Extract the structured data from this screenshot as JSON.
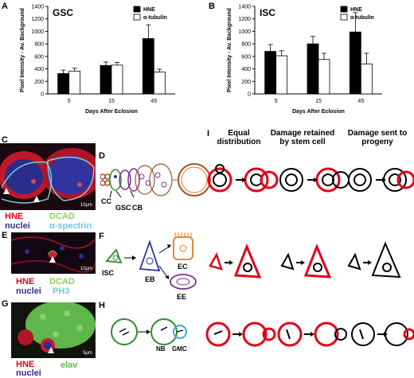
{
  "panels": {
    "A": "A",
    "B": "B",
    "C": "C",
    "D": "D",
    "E": "E",
    "F": "F",
    "G": "G",
    "H": "H",
    "I": "I"
  },
  "chart_data": [
    {
      "type": "bar",
      "panel": "A",
      "title": "GSC",
      "categories": [
        "5",
        "15",
        "45"
      ],
      "series": [
        {
          "name": "HNE",
          "values": [
            325,
            455,
            885
          ],
          "errors": [
            55,
            55,
            220
          ],
          "color": "#000000"
        },
        {
          "name": "α-tubulin",
          "values": [
            365,
            460,
            350
          ],
          "errors": [
            45,
            45,
            45
          ],
          "color": "#ffffff"
        }
      ],
      "xlabel": "Days After Eclosion",
      "ylabel": "Pixel Intensity - Av. Background",
      "ylim": [
        0,
        1400
      ],
      "yticks": [
        0,
        200,
        400,
        600,
        800,
        1000,
        1200,
        1400
      ],
      "legend": "top-right",
      "grid": false
    },
    {
      "type": "bar",
      "panel": "B",
      "title": "ISC",
      "categories": [
        "5",
        "15",
        "45"
      ],
      "series": [
        {
          "name": "HNE",
          "values": [
            680,
            800,
            990
          ],
          "errors": [
            110,
            120,
            310
          ],
          "color": "#000000"
        },
        {
          "name": "α-tubulin",
          "values": [
            610,
            550,
            480
          ],
          "errors": [
            80,
            100,
            170
          ],
          "color": "#ffffff"
        }
      ],
      "xlabel": "Days After Eclosion",
      "ylabel": "Pixel Intensity - Av. Background",
      "ylim": [
        0,
        1400
      ],
      "yticks": [
        0,
        200,
        400,
        600,
        800,
        1000,
        1200,
        1400
      ],
      "legend": "top-right",
      "grid": false
    }
  ],
  "micro_c": {
    "red": "HNE",
    "blue": "nuclei",
    "green": "DCAD",
    "cyan": "α-spectrin",
    "scale": "10μm"
  },
  "micro_e": {
    "red": "HNE",
    "blue": "nuclei",
    "green": "DCAD",
    "cyan": "PH3",
    "scale": "10μm"
  },
  "micro_g": {
    "red": "HNE",
    "blue": "nuclei",
    "green": "elav",
    "scale": "5μm"
  },
  "diagram_d": {
    "cc": "CC",
    "gsc": "GSC",
    "cb": "CB"
  },
  "diagram_f": {
    "isc": "ISC",
    "eb": "EB",
    "ec": "EC",
    "ee": "EE"
  },
  "diagram_h": {
    "nb": "NB",
    "gmc": "GMC"
  },
  "model_i": {
    "col1": "Equal distribution",
    "col2": "Damage retained by stem cell",
    "col3": "Damage sent to progeny"
  },
  "colors": {
    "hne_red": "#e2001a",
    "gsc_green": "#2e8b2e",
    "eb_blue": "#2e3192",
    "ec_orange": "#e87722",
    "ee_purple": "#7b2d8b",
    "gmc_blue": "#4aa3d8"
  }
}
